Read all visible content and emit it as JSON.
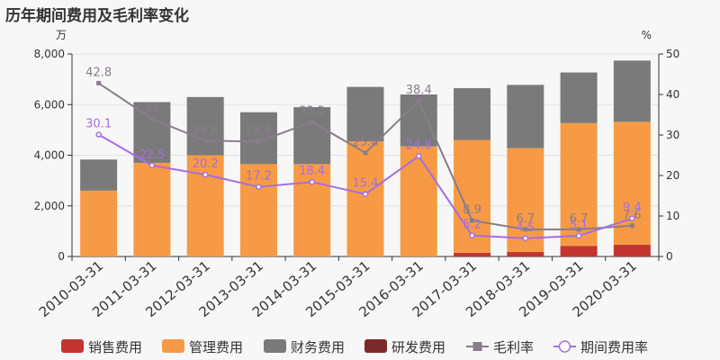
{
  "title": "历年期间费用及毛利率变化",
  "chart_data": {
    "type": "bar",
    "stacked": true,
    "categories": [
      "2010-03-31",
      "2011-03-31",
      "2012-03-31",
      "2013-03-31",
      "2014-03-31",
      "2015-03-31",
      "2016-03-31",
      "2017-03-31",
      "2018-03-31",
      "2019-03-31",
      "2020-03-31"
    ],
    "y_unit_left": "万",
    "y_unit_right": "%",
    "ylim_left": [
      0,
      8000
    ],
    "ylim_right": [
      0,
      50
    ],
    "y_ticks_left": [
      "0",
      "2,000",
      "4,000",
      "6,000",
      "8,000"
    ],
    "y_ticks_right": [
      "0",
      "10",
      "20",
      "30",
      "40",
      "50"
    ],
    "grid": true,
    "legend_position": "bottom",
    "series": [
      {
        "name": "销售费用",
        "kind": "bar",
        "axis": "left",
        "color": "#c23531",
        "values": [
          0,
          0,
          0,
          0,
          0,
          0,
          0,
          150,
          180,
          420,
          470
        ]
      },
      {
        "name": "管理费用",
        "kind": "bar",
        "axis": "left",
        "color": "#f79a45",
        "values": [
          2600,
          3700,
          4000,
          3650,
          3650,
          4550,
          4350,
          4450,
          4100,
          4850,
          4850
        ]
      },
      {
        "name": "财务费用",
        "kind": "bar",
        "axis": "left",
        "color": "#7a7a7a",
        "values": [
          1230,
          2400,
          2300,
          2050,
          2250,
          2150,
          2050,
          2050,
          2500,
          2000,
          2420
        ]
      },
      {
        "name": "研发费用",
        "kind": "bar",
        "axis": "left",
        "color": "#7b2a2a",
        "values": [
          0,
          0,
          0,
          0,
          0,
          0,
          0,
          0,
          0,
          0,
          0
        ]
      },
      {
        "name": "毛利率",
        "kind": "line",
        "axis": "right",
        "color": "#8a7c8c",
        "marker": "square",
        "values": [
          42.8,
          34,
          28.6,
          28.4,
          33.2,
          25.6,
          38.4,
          8.9,
          6.7,
          6.7,
          7.6
        ],
        "labels": [
          "42.8",
          "34",
          "28.6",
          "28.4",
          "33.2",
          "25.6",
          "38.4",
          "8.9",
          "6.7",
          "6.7",
          "7.6"
        ]
      },
      {
        "name": "期间费用率",
        "kind": "line",
        "axis": "right",
        "color": "#a66ee0",
        "marker": "circle",
        "values": [
          30.1,
          22.5,
          20.2,
          17.2,
          18.4,
          15.4,
          24.8,
          5.2,
          4.5,
          5.1,
          9.4
        ],
        "labels": [
          "30.1",
          "22.5",
          "20.2",
          "17.2",
          "18.4",
          "15.4",
          "24.8",
          "5.2",
          "4.5",
          "5.1",
          "9.4"
        ]
      }
    ]
  }
}
